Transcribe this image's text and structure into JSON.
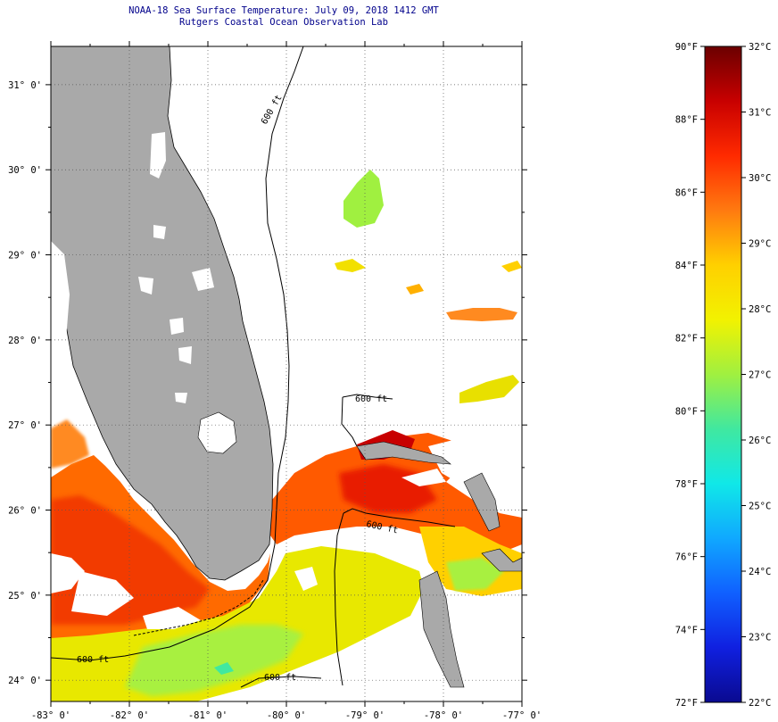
{
  "header": {
    "title": "NOAA-18 Sea Surface Temperature:  July 09, 2018 1412 GMT",
    "subtitle": "Rutgers Coastal Ocean Observation Lab"
  },
  "map": {
    "lon_range": [
      -83,
      -77
    ],
    "lat_range": [
      23.75,
      31.45
    ],
    "x_ticks": [
      {
        "lon": -83,
        "label": "-83° 0'"
      },
      {
        "lon": -82,
        "label": "-82° 0'"
      },
      {
        "lon": -81,
        "label": "-81° 0'"
      },
      {
        "lon": -80,
        "label": "-80° 0'"
      },
      {
        "lon": -79,
        "label": "-79° 0'"
      },
      {
        "lon": -78,
        "label": "-78° 0'"
      },
      {
        "lon": -77,
        "label": "-77° 0'"
      }
    ],
    "y_ticks": [
      {
        "lat": 24,
        "label": "24° 0'"
      },
      {
        "lat": 25,
        "label": "25° 0'"
      },
      {
        "lat": 26,
        "label": "26° 0'"
      },
      {
        "lat": 27,
        "label": "27° 0'"
      },
      {
        "lat": 28,
        "label": "28° 0'"
      },
      {
        "lat": 29,
        "label": "29° 0'"
      },
      {
        "lat": 30,
        "label": "30° 0'"
      },
      {
        "lat": 31,
        "label": "31° 0'"
      }
    ],
    "isobath_label": "600 ft",
    "colors": {
      "land": "#a9a9a9",
      "ocean_cloud": "#ffffff",
      "frame": "#000000"
    }
  },
  "colorbar": {
    "f_range": [
      72,
      90
    ],
    "c_range": [
      22,
      32
    ],
    "f_labels": [
      "90°F",
      "88°F",
      "86°F",
      "84°F",
      "82°F",
      "80°F",
      "78°F",
      "76°F",
      "74°F",
      "72°F"
    ],
    "f_values": [
      90,
      88,
      86,
      84,
      82,
      80,
      78,
      76,
      74,
      72
    ],
    "c_labels": [
      "32°C",
      "31°C",
      "30°C",
      "29°C",
      "28°C",
      "27°C",
      "26°C",
      "25°C",
      "24°C",
      "23°C",
      "22°C"
    ],
    "c_values": [
      32,
      31,
      30,
      29,
      28,
      27,
      26,
      25,
      24,
      23,
      22
    ],
    "gradient_stops": [
      "#6b0000",
      "#c80000",
      "#ff2a00",
      "#ff7a10",
      "#ffd000",
      "#f2f200",
      "#a0f040",
      "#40e8a0",
      "#10e8e8",
      "#10a8ff",
      "#1060ff",
      "#1020e0",
      "#0a0a90"
    ]
  }
}
